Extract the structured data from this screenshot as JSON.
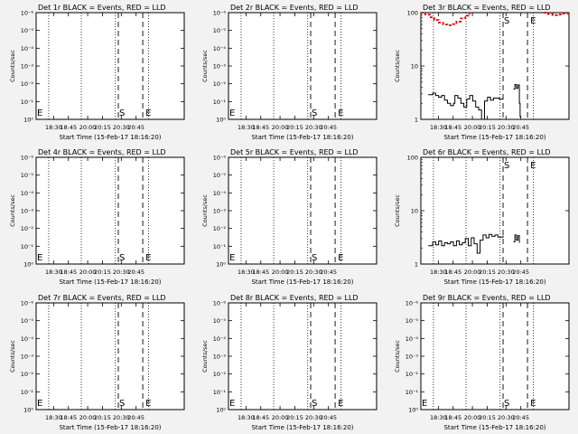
{
  "figure": {
    "background": "#f2f2f2",
    "plot_background": "#ffffff",
    "axis_color": "#000000",
    "lld_color": "#e00000",
    "events_color": "#000000"
  },
  "xaxis": {
    "label": "Start Time (15-Feb-17 18:16:20)",
    "ticks": [
      "18:30",
      "18:45",
      "20:00",
      "20:15",
      "20:30",
      "20:45"
    ]
  },
  "markers": {
    "start": "S",
    "end": "E"
  },
  "chart_data": [
    {
      "type": "line",
      "title": "Det 1r BLACK = Events, RED = LLD",
      "ylabel": "Counts/sec",
      "yscale": "log",
      "ytick_labels": [
        "10⁰",
        "10⁻¹",
        "10⁻²",
        "10⁻³",
        "10⁻⁴",
        "10⁻⁵",
        "10⁻⁶"
      ],
      "series": []
    },
    {
      "type": "line",
      "title": "Det 2r BLACK = Events, RED = LLD",
      "ylabel": "Counts/sec",
      "yscale": "log",
      "ytick_labels": [
        "10⁰",
        "10⁻¹",
        "10⁻²",
        "10⁻³",
        "10⁻⁴",
        "10⁻⁵",
        "10⁻⁶"
      ],
      "series": []
    },
    {
      "type": "line",
      "title": "Det 3r BLACK = Events, RED = LLD",
      "ylabel": "Counts/sec",
      "yscale": "log",
      "ytick_labels": [
        "1",
        "10",
        "100"
      ],
      "series": [
        {
          "color": "#000000",
          "segments": [
            [
              [
                0.05,
                2.9
              ],
              [
                0.08,
                3.1
              ],
              [
                0.1,
                2.8
              ],
              [
                0.12,
                2.6
              ],
              [
                0.14,
                2.8
              ],
              [
                0.16,
                2.3
              ],
              [
                0.18,
                2.0
              ],
              [
                0.2,
                1.8
              ],
              [
                0.22,
                2.0
              ],
              [
                0.23,
                2.8
              ],
              [
                0.25,
                2.5
              ],
              [
                0.27,
                2.0
              ],
              [
                0.29,
                1.7
              ],
              [
                0.31,
                2.4
              ],
              [
                0.33,
                2.8
              ],
              [
                0.35,
                2.2
              ],
              [
                0.37,
                1.7
              ],
              [
                0.39,
                1.5
              ],
              [
                0.41,
                1.0
              ],
              [
                0.43,
                2.2
              ],
              [
                0.45,
                2.6
              ],
              [
                0.47,
                2.3
              ],
              [
                0.49,
                2.5
              ],
              [
                0.51,
                2.5
              ],
              [
                0.53,
                2.4
              ],
              [
                0.555,
                2.5
              ]
            ],
            [
              [
                0.625,
                3.7
              ],
              [
                0.635,
                4.5
              ],
              [
                0.645,
                3.8
              ],
              [
                0.655,
                4.4
              ],
              [
                0.665,
                2.0
              ],
              [
                0.67,
                1.1
              ]
            ]
          ]
        },
        {
          "color": "#e00000",
          "segments": [
            [
              [
                0.0,
                100
              ],
              [
                0.03,
                92
              ],
              [
                0.06,
                82
              ],
              [
                0.09,
                73
              ],
              [
                0.12,
                65
              ],
              [
                0.15,
                60
              ],
              [
                0.18,
                58
              ],
              [
                0.21,
                61
              ],
              [
                0.24,
                68
              ],
              [
                0.27,
                78
              ],
              [
                0.3,
                88
              ],
              [
                0.32,
                96
              ],
              [
                0.33,
                100
              ]
            ],
            [
              [
                0.83,
                100
              ],
              [
                0.86,
                94
              ],
              [
                0.89,
                90
              ],
              [
                0.92,
                92
              ],
              [
                0.95,
                96
              ],
              [
                1.0,
                100
              ]
            ]
          ]
        }
      ]
    },
    {
      "type": "line",
      "title": "Det 4r BLACK = Events, RED = LLD",
      "ylabel": "Counts/sec",
      "yscale": "log",
      "ytick_labels": [
        "10⁰",
        "10⁻¹",
        "10⁻²",
        "10⁻³",
        "10⁻⁴",
        "10⁻⁵",
        "10⁻⁶"
      ],
      "series": []
    },
    {
      "type": "line",
      "title": "Det 5r BLACK = Events, RED = LLD",
      "ylabel": "Counts/sec",
      "yscale": "log",
      "ytick_labels": [
        "10⁰",
        "10⁻¹",
        "10⁻²",
        "10⁻³",
        "10⁻⁴",
        "10⁻⁵",
        "10⁻⁶"
      ],
      "series": []
    },
    {
      "type": "line",
      "title": "Det 6r BLACK = Events, RED = LLD",
      "ylabel": "Counts/sec",
      "yscale": "log",
      "ytick_labels": [
        "1",
        "10",
        "100"
      ],
      "series": [
        {
          "color": "#000000",
          "segments": [
            [
              [
                0.05,
                2.2
              ],
              [
                0.08,
                2.6
              ],
              [
                0.1,
                2.3
              ],
              [
                0.12,
                2.7
              ],
              [
                0.14,
                2.2
              ],
              [
                0.16,
                2.5
              ],
              [
                0.18,
                2.4
              ],
              [
                0.2,
                2.6
              ],
              [
                0.22,
                2.2
              ],
              [
                0.24,
                2.7
              ],
              [
                0.26,
                2.3
              ],
              [
                0.28,
                2.5
              ],
              [
                0.3,
                3.0
              ],
              [
                0.32,
                2.2
              ],
              [
                0.34,
                3.1
              ],
              [
                0.36,
                2.4
              ],
              [
                0.38,
                1.6
              ],
              [
                0.4,
                2.8
              ],
              [
                0.42,
                3.5
              ],
              [
                0.44,
                3.1
              ],
              [
                0.46,
                3.6
              ],
              [
                0.48,
                3.3
              ],
              [
                0.5,
                3.5
              ],
              [
                0.52,
                3.2
              ],
              [
                0.555,
                3.4
              ]
            ],
            [
              [
                0.625,
                2.6
              ],
              [
                0.635,
                3.5
              ],
              [
                0.645,
                2.8
              ],
              [
                0.655,
                3.4
              ],
              [
                0.665,
                2.5
              ]
            ]
          ]
        }
      ]
    },
    {
      "type": "line",
      "title": "Det 7r BLACK = Events, RED = LLD",
      "ylabel": "Counts/sec",
      "yscale": "log",
      "ytick_labels": [
        "10⁰",
        "10⁻¹",
        "10⁻²",
        "10⁻³",
        "10⁻⁴",
        "10⁻⁵",
        "10⁻⁶"
      ],
      "series": []
    },
    {
      "type": "line",
      "title": "Det 8r BLACK = Events, RED = LLD",
      "ylabel": "Counts/sec",
      "yscale": "log",
      "ytick_labels": [
        "10⁰",
        "10⁻¹",
        "10⁻²",
        "10⁻³",
        "10⁻⁴",
        "10⁻⁵",
        "10⁻⁶"
      ],
      "series": []
    },
    {
      "type": "line",
      "title": "Det 9r BLACK = Events, RED = LLD",
      "ylabel": "Counts/sec",
      "yscale": "log",
      "ytick_labels": [
        "10⁰",
        "10⁻¹",
        "10⁻²",
        "10⁻³",
        "10⁻⁴",
        "10⁻⁵",
        "10⁻⁶"
      ],
      "series": []
    }
  ]
}
